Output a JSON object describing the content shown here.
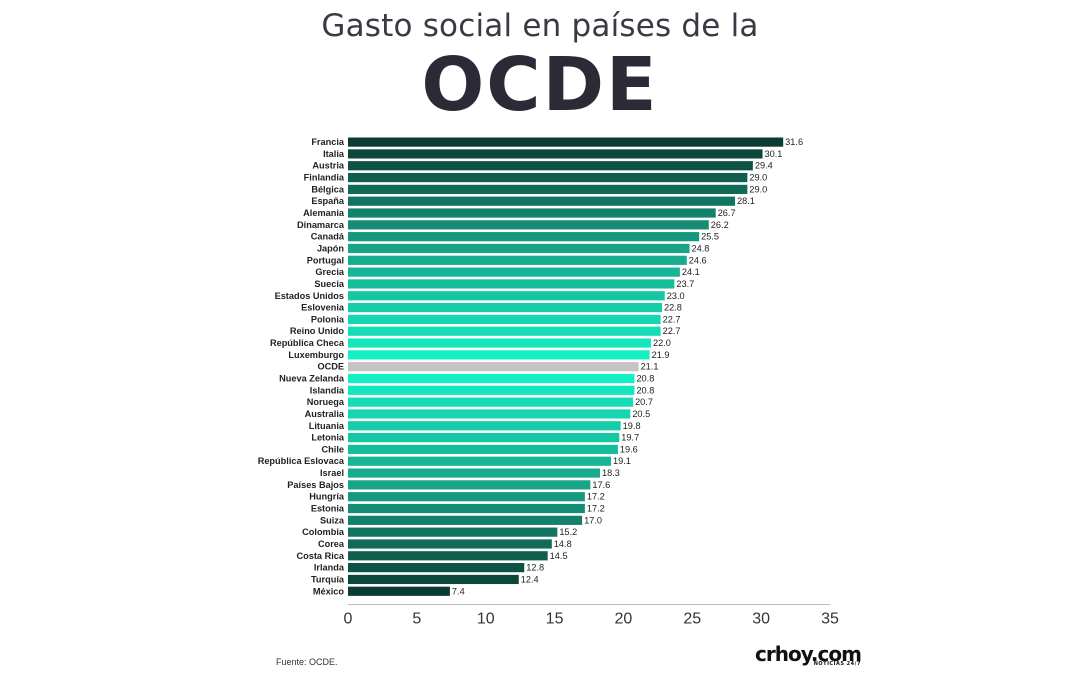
{
  "header": {
    "title_top": "Gasto social en países de la",
    "title_main": "OCDE"
  },
  "colors": {
    "dark": "#0b3b32",
    "mid": "#17a487",
    "light": "#14efc4",
    "highlight": "#c4c4c4"
  },
  "chart_data": {
    "type": "bar",
    "orientation": "horizontal",
    "title": "Gasto social en países de la OCDE",
    "categories": [
      "Francia",
      "Italia",
      "Austria",
      "Finlandia",
      "Bélgica",
      "España",
      "Alemania",
      "Dinamarca",
      "Canadá",
      "Japón",
      "Portugal",
      "Grecia",
      "Suecia",
      "Estados Unidos",
      "Eslovenia",
      "Polonia",
      "Reino Unido",
      "República Checa",
      "Luxemburgo",
      "OCDE",
      "Nueva Zelanda",
      "Islandia",
      "Noruega",
      "Australia",
      "Lituania",
      "Letonia",
      "Chile",
      "República Eslovaca",
      "Israel",
      "Países Bajos",
      "Hungría",
      "Estonia",
      "Suiza",
      "Colombia",
      "Corea",
      "Costa Rica",
      "Irlanda",
      "Turquía",
      "México"
    ],
    "values": [
      31.6,
      30.1,
      29.4,
      29.0,
      29.0,
      28.1,
      26.7,
      26.2,
      25.5,
      24.8,
      24.6,
      24.1,
      23.7,
      23.0,
      22.8,
      22.7,
      22.7,
      22.0,
      21.9,
      21.1,
      20.8,
      20.8,
      20.7,
      20.5,
      19.8,
      19.7,
      19.6,
      19.1,
      18.3,
      17.6,
      17.2,
      17.2,
      17.0,
      15.2,
      14.8,
      14.5,
      12.8,
      12.4,
      7.4
    ],
    "value_labels": [
      "31.6",
      "30.1",
      "29.4",
      "29.0",
      "29.0",
      "28.1",
      "26.7",
      "26.2",
      "25.5",
      "24.8",
      "24.6",
      "24.1",
      "23.7",
      "23.0",
      "22.8",
      "22.7",
      "22.7",
      "22.0",
      "21.9",
      "21.1",
      "20.8",
      "20.8",
      "20.7",
      "20.5",
      "19.8",
      "19.7",
      "19.6",
      "19.1",
      "18.3",
      "17.6",
      "17.2",
      "17.2",
      "17.0",
      "15.2",
      "14.8",
      "14.5",
      "12.8",
      "12.4",
      "7.4"
    ],
    "highlight": "OCDE",
    "x_ticks": [
      "0",
      "5",
      "10",
      "15",
      "20",
      "25",
      "30",
      "35"
    ],
    "xlim": [
      0,
      35
    ],
    "grid": false,
    "legend": "none"
  },
  "footer": {
    "source": "Fuente: OCDE.",
    "logo_main": "crhoy.com",
    "logo_sub": "NOTICIAS 24/7"
  }
}
